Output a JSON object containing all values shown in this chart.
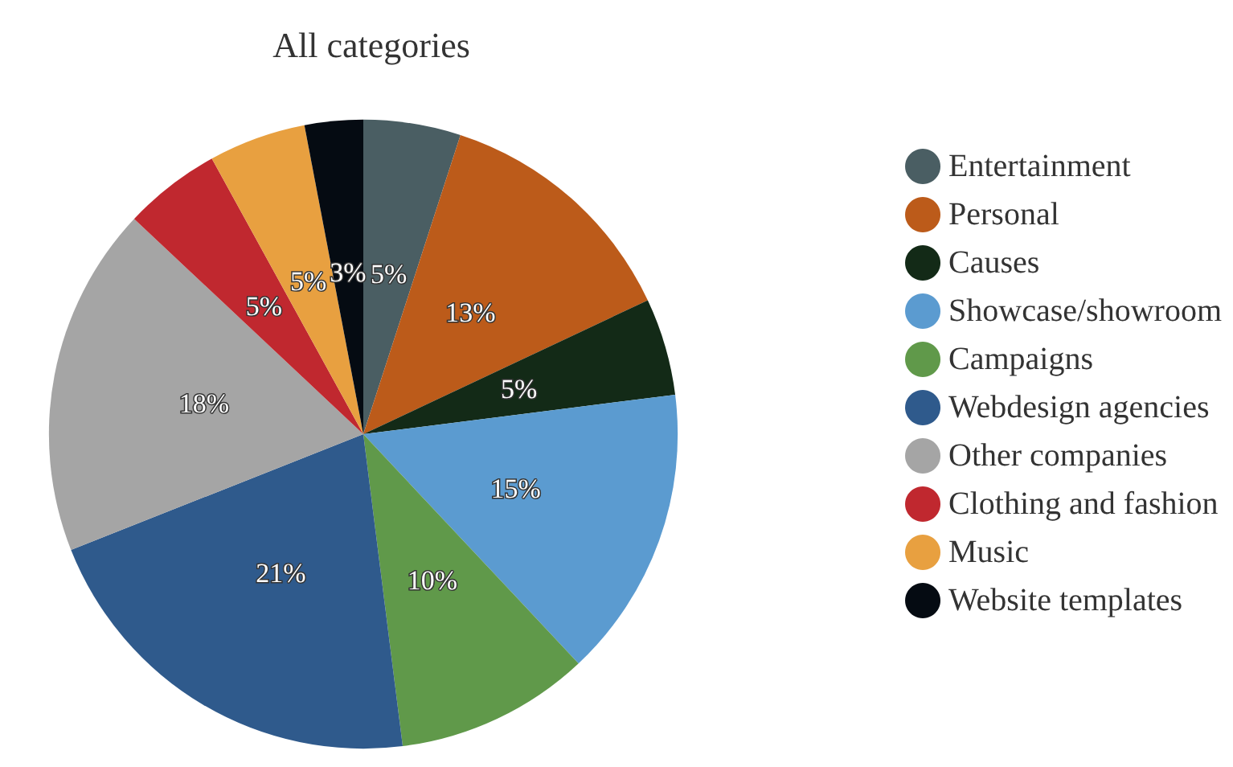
{
  "chart_data": {
    "type": "pie",
    "title": "All categories",
    "categories": [
      "Entertainment",
      "Personal",
      "Causes",
      "Showcase/showroom",
      "Campaigns",
      "Webdesign agencies",
      "Other companies",
      "Clothing and fashion",
      "Music",
      "Website templates"
    ],
    "values": [
      5,
      13,
      5,
      15,
      10,
      21,
      18,
      5,
      5,
      3
    ],
    "colors": [
      "#4a5e63",
      "#bc5b1a",
      "#132a17",
      "#5b9bd0",
      "#60994a",
      "#2f5a8c",
      "#a5a5a5",
      "#c0282f",
      "#e8a040",
      "#050b12"
    ],
    "value_labels": [
      "5%",
      "13%",
      "5%",
      "15%",
      "10%",
      "21%",
      "18%",
      "5%",
      "5%",
      "3%"
    ],
    "legend": "right"
  }
}
